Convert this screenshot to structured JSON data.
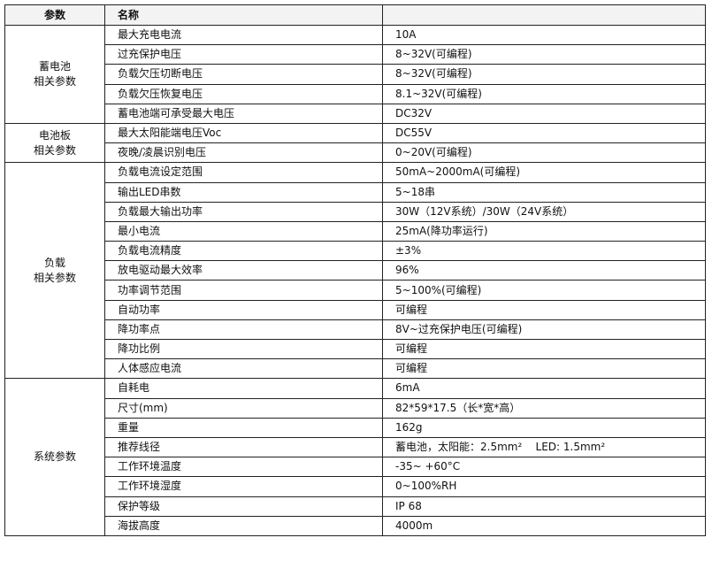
{
  "header": {
    "col1": "参数",
    "col2": "名称",
    "col3": ""
  },
  "groups": [
    {
      "label_line1": "蓄电池",
      "label_line2": "相关参数",
      "rows": [
        {
          "name": "最大充电电流",
          "value": "10A"
        },
        {
          "name": "过充保护电压",
          "value": "8~32V(可编程)"
        },
        {
          "name": "负载欠压切断电压",
          "value": "8~32V(可编程)"
        },
        {
          "name": "负载欠压恢复电压",
          "value": "8.1~32V(可编程)"
        },
        {
          "name": "蓄电池端可承受最大电压",
          "value": "DC32V"
        }
      ]
    },
    {
      "label_line1": "电池板",
      "label_line2": "相关参数",
      "rows": [
        {
          "name": "最大太阳能端电压Voc",
          "value": "DC55V"
        },
        {
          "name": "夜晚/凌晨识别电压",
          "value": "0~20V(可编程)"
        }
      ]
    },
    {
      "label_line1": "负载",
      "label_line2": "相关参数",
      "rows": [
        {
          "name": "负载电流设定范围",
          "value": "50mA~2000mA(可编程)"
        },
        {
          "name": "输出LED串数",
          "value": "5~18串"
        },
        {
          "name": "负载最大输出功率",
          "value": "30W（12V系统）/30W（24V系统）"
        },
        {
          "name": "最小电流",
          "value": "25mA(降功率运行)"
        },
        {
          "name": "负载电流精度",
          "value": "±3%"
        },
        {
          "name": "放电驱动最大效率",
          "value": "96%"
        },
        {
          "name": "功率调节范围",
          "value": "5~100%(可编程)"
        },
        {
          "name": "自动功率",
          "value": "可编程"
        },
        {
          "name": "降功率点",
          "value": "8V~过充保护电压(可编程)"
        },
        {
          "name": "降功比例",
          "value": "可编程"
        },
        {
          "name": "人体感应电流",
          "value": "可编程"
        }
      ]
    },
    {
      "label_line1": "系统参数",
      "label_line2": "",
      "rows": [
        {
          "name": "自耗电",
          "value": "6mA"
        },
        {
          "name": "尺寸(mm)",
          "value": "82*59*17.5（长*宽*高）"
        },
        {
          "name": "重量",
          "value": "162g"
        },
        {
          "name": "推荐线径",
          "value": "蓄电池，太阳能：2.5mm²    LED: 1.5mm²"
        },
        {
          "name": "工作环境温度",
          "value": "-35~ +60°C"
        },
        {
          "name": "工作环境湿度",
          "value": "0~100%RH"
        },
        {
          "name": "保护等级",
          "value": "IP 68"
        },
        {
          "name": "海拔高度",
          "value": "4000m"
        }
      ]
    }
  ]
}
